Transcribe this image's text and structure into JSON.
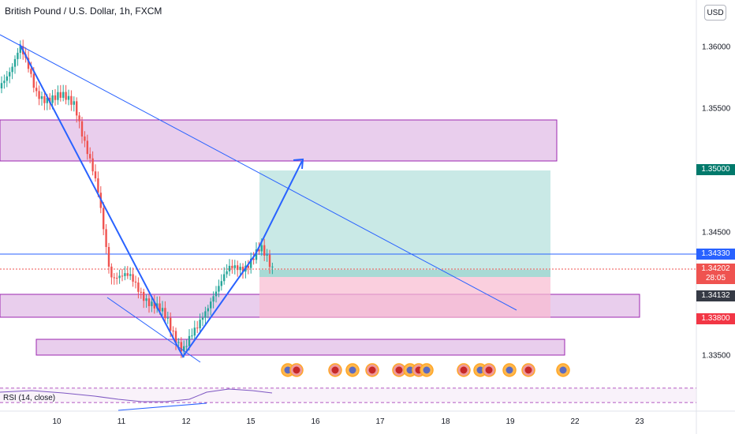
{
  "header": {
    "symbol_title": "British Pound / U.S. Dollar, 1h, FXCM",
    "currency_button": "USD"
  },
  "price_axis": {
    "ticks": [
      "1.36000",
      "1.35500",
      "1.35000",
      "1.34500",
      "1.33500"
    ],
    "labels": {
      "target": "1.35000",
      "horizontal_line": "1.34330",
      "last_price": "1.34202",
      "countdown": "28:05",
      "entry": "1.34132",
      "stop": "1.33800"
    }
  },
  "time_axis": {
    "ticks": [
      "10",
      "11",
      "12",
      "15",
      "16",
      "17",
      "18",
      "19",
      "22",
      "23"
    ]
  },
  "indicator": {
    "label": "RSI (14, close)"
  },
  "colors": {
    "accent_blue": "#2962ff",
    "zone_fill": "#e1bee7",
    "zone_border": "#9c27b0",
    "profit_fill": "#b2dfdb",
    "loss_fill": "#f8bbd0",
    "candle_up": "#26a69a",
    "candle_down": "#ef5350",
    "target_tag": "#00796b",
    "horizontal_tag": "#2962ff",
    "last_price_tag": "#ef5350",
    "entry_tag": "#363a45",
    "stop_tag": "#f23645"
  },
  "icons": [
    "us-flag-event-icon",
    "uk-flag-event-icon"
  ]
}
